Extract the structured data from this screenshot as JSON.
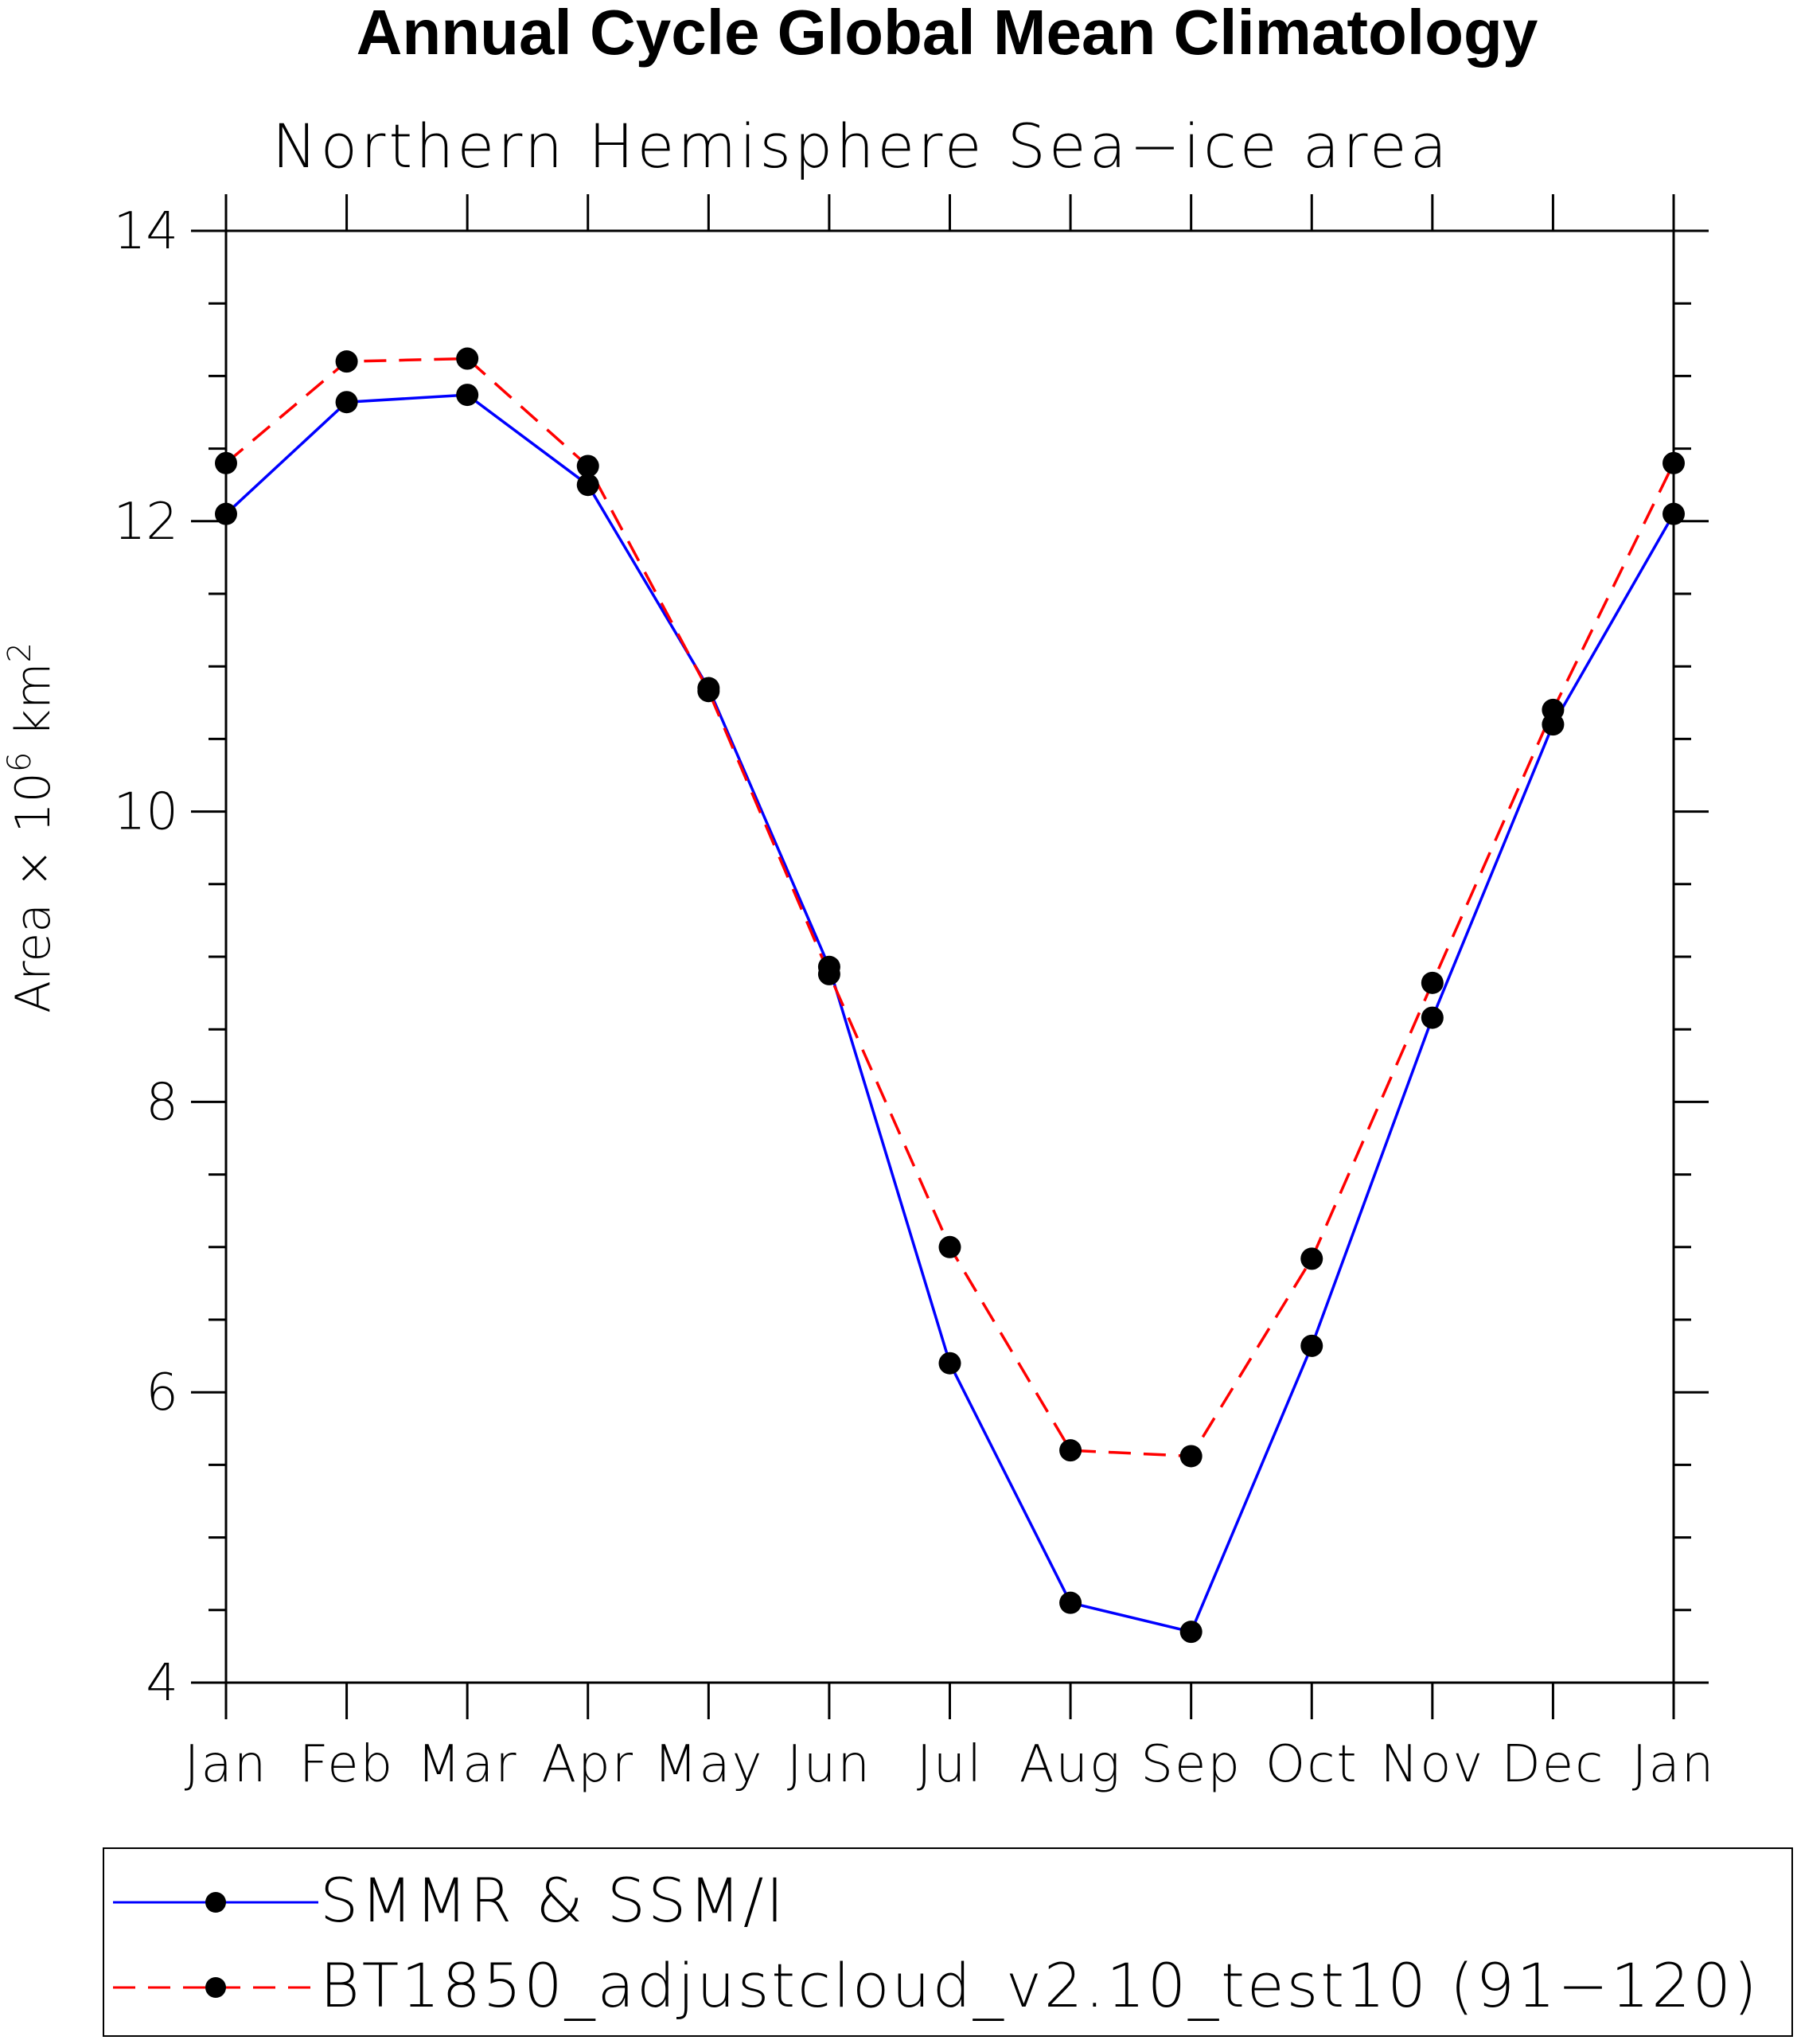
{
  "chart_data": {
    "type": "line",
    "title": "Annual Cycle Global Mean Climatology",
    "subtitle": "Northern Hemisphere Sea−ice area",
    "ylabel": "Area × 10",
    "ylabel_exp": "6",
    "ylabel_unit": " km",
    "ylabel_unit_exp": "2",
    "ylim": [
      4,
      14
    ],
    "yticks": [
      4,
      6,
      8,
      10,
      12,
      14
    ],
    "yminor_step": 0.5,
    "categories": [
      "Jan",
      "Feb",
      "Mar",
      "Apr",
      "May",
      "Jun",
      "Jul",
      "Aug",
      "Sep",
      "Oct",
      "Nov",
      "Dec",
      "Jan"
    ],
    "series": [
      {
        "name": "SMMR & SSM/I",
        "color": "#0000ff",
        "dashed": false,
        "values": [
          12.05,
          12.82,
          12.87,
          12.25,
          10.85,
          8.93,
          6.2,
          4.55,
          4.35,
          6.32,
          8.58,
          10.6,
          12.05
        ]
      },
      {
        "name": "BT1850_adjustcloud_v2.10_test10 (91−120)",
        "color": "#ff0000",
        "dashed": true,
        "values": [
          12.4,
          13.1,
          13.12,
          12.38,
          10.83,
          8.88,
          7.0,
          5.6,
          5.56,
          6.92,
          8.82,
          10.7,
          12.4
        ]
      }
    ],
    "legend_position": "bottom"
  }
}
